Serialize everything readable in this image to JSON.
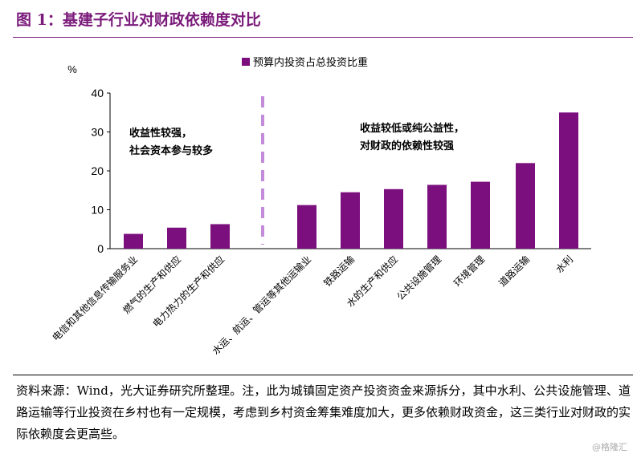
{
  "figure": {
    "title": "图 1：基建子行业对财政依赖度对比",
    "note": "资料来源：Wind，光大证券研究所整理。注，此为城镇固定资产投资资金来源拆分，其中水利、公共设施管理、道路运输等行业投资在乡村也有一定规模，考虑到乡村资金筹集难度加大，更多依赖财政资金，这三类行业对财政的实际依赖度会更高些。",
    "watermark": "@格隆汇"
  },
  "colors": {
    "bar": "#7b0f7e",
    "divider": "#c58bdb",
    "title": "#7a1a7a"
  },
  "chart_data": {
    "type": "bar",
    "categories": [
      "电信和其他信息传输服务业",
      "燃气的生产和供应",
      "电力热力的生产和供应",
      "水运、航运、管运等其他运输业",
      "铁路运输",
      "水的生产和供应",
      "公共设施管理",
      "环境管理",
      "道路运输",
      "水利"
    ],
    "series": [
      {
        "name": "预算内投资占总投资比重",
        "values": [
          3.8,
          5.4,
          6.3,
          11.2,
          14.5,
          15.3,
          16.4,
          17.2,
          22.0,
          35.0
        ]
      }
    ],
    "ylabel": "%",
    "ylim": [
      0,
      40
    ],
    "yticks": [
      0,
      10,
      20,
      30,
      40
    ],
    "legend_position": "top",
    "annotations": [
      {
        "lines": [
          "收益性较强，",
          "社会资本参与较多"
        ]
      },
      {
        "lines": [
          "收益较低或纯公益性，",
          "对财政的依赖性较强"
        ]
      }
    ]
  }
}
